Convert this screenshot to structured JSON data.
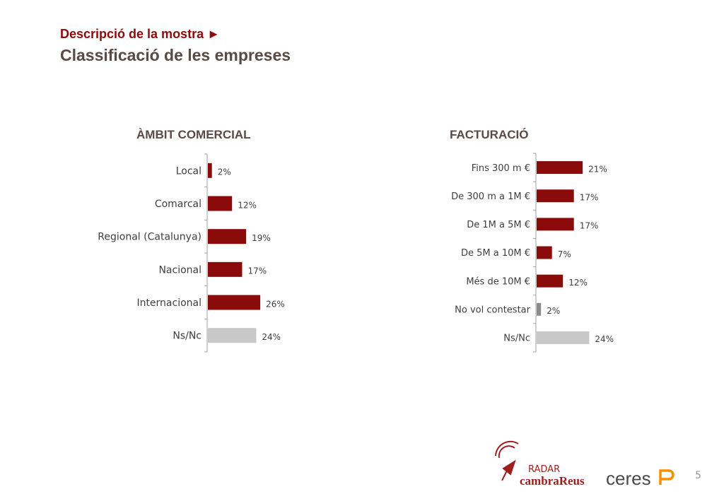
{
  "header": {
    "subtitle": "Descripció de la mostra ►",
    "title": "Classificació de les empreses"
  },
  "page_number": "5",
  "logos": {
    "radar_word": "RADAR",
    "cambra_word": "cambraReus",
    "ceres_word": "ceres"
  },
  "colors": {
    "dark_red": "#8b0a0a",
    "gray": "#8c8c8c",
    "light_gray": "#c8c8c8",
    "header_red": "#8b0a0a",
    "title_brown": "#5a4a43",
    "ceres_orange": "#f39200"
  },
  "chart_data": [
    {
      "type": "bar",
      "orientation": "horizontal",
      "title": "ÀMBIT COMERCIAL",
      "categories": [
        "Local",
        "Comarcal",
        "Regional (Catalunya)",
        "Nacional",
        "Internacional",
        "Ns/Nc"
      ],
      "values": [
        2,
        12,
        19,
        17,
        26,
        24
      ],
      "value_labels": [
        "2%",
        "12%",
        "19%",
        "17%",
        "26%",
        "24%"
      ],
      "bar_colors": [
        "#8b0a0a",
        "#8b0a0a",
        "#8b0a0a",
        "#8b0a0a",
        "#8b0a0a",
        "#c8c8c8"
      ],
      "unit": "%",
      "grid": false
    },
    {
      "type": "bar",
      "orientation": "horizontal",
      "title": "FACTURACIÓ",
      "categories": [
        "Fins 300 m €",
        "De 300 m a 1M €",
        "De 1M a 5M €",
        "De 5M a 10M €",
        "Més de 10M €",
        "No vol contestar",
        "Ns/Nc"
      ],
      "values": [
        21,
        17,
        17,
        7,
        12,
        2,
        24
      ],
      "value_labels": [
        "21%",
        "17%",
        "17%",
        "7%",
        "12%",
        "2%",
        "24%"
      ],
      "bar_colors": [
        "#8b0a0a",
        "#8b0a0a",
        "#8b0a0a",
        "#8b0a0a",
        "#8b0a0a",
        "#8c8c8c",
        "#c8c8c8"
      ],
      "unit": "%",
      "grid": false
    }
  ]
}
